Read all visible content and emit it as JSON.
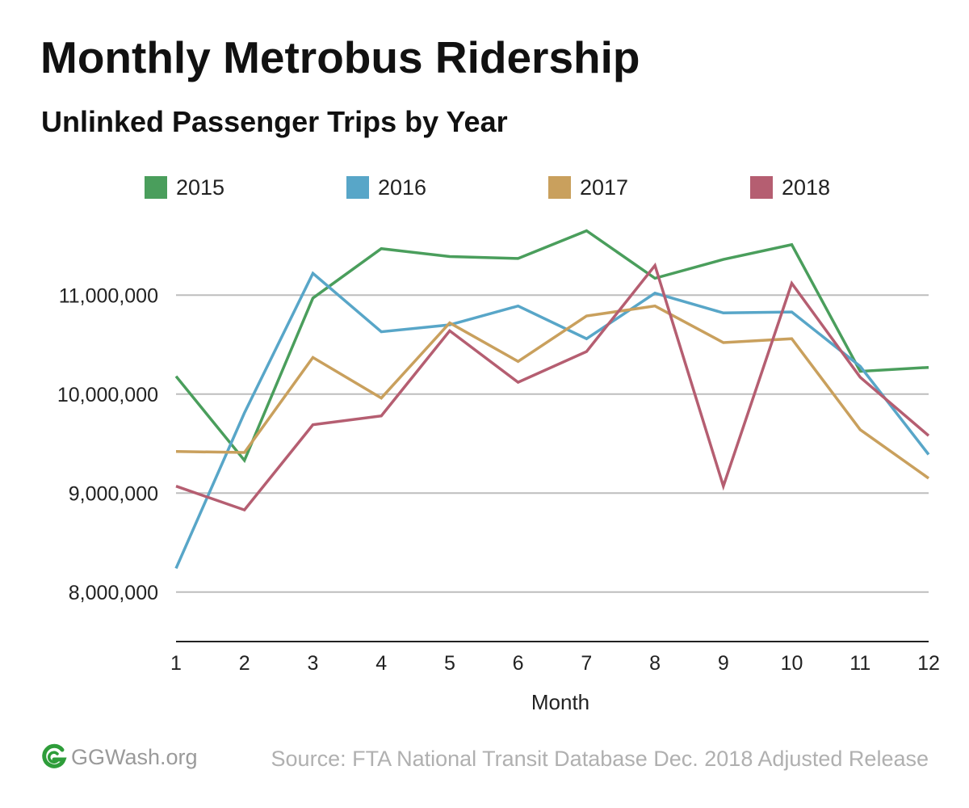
{
  "header": {
    "title": "Monthly Metrobus Ridership",
    "subtitle": "Unlinked Passenger Trips by Year"
  },
  "footer": {
    "brand": "GGWash.org",
    "source": "Source: FTA National Transit Database Dec. 2018 Adjusted Release"
  },
  "colors": {
    "2015": "#4a9e5c",
    "2016": "#58a6c8",
    "2017": "#c9a05d",
    "2018": "#b55e71",
    "brand_green": "#2e9d3a"
  },
  "chart_data": {
    "type": "line",
    "xlabel": "Month",
    "ylabel": "",
    "x": [
      1,
      2,
      3,
      4,
      5,
      6,
      7,
      8,
      9,
      10,
      11,
      12
    ],
    "ylim": [
      7500000,
      11900000
    ],
    "yticks": [
      8000000,
      9000000,
      10000000,
      11000000
    ],
    "ytick_labels": [
      "8,000,000",
      "9,000,000",
      "10,000,000",
      "11,000,000"
    ],
    "grid": true,
    "legend_position": "top",
    "series": [
      {
        "name": "2015",
        "values": [
          10180000,
          9330000,
          10970000,
          11470000,
          11390000,
          11370000,
          11650000,
          11170000,
          11360000,
          11510000,
          10230000,
          10270000
        ]
      },
      {
        "name": "2016",
        "values": [
          8240000,
          9810000,
          11220000,
          10630000,
          10700000,
          10890000,
          10560000,
          11020000,
          10820000,
          10830000,
          10280000,
          9390000
        ]
      },
      {
        "name": "2017",
        "values": [
          9420000,
          9410000,
          10370000,
          9960000,
          10720000,
          10330000,
          10790000,
          10890000,
          10520000,
          10560000,
          9640000,
          9150000
        ]
      },
      {
        "name": "2018",
        "values": [
          9070000,
          8830000,
          9690000,
          9780000,
          10640000,
          10120000,
          10430000,
          11300000,
          9070000,
          11120000,
          10170000,
          9580000
        ]
      }
    ]
  }
}
